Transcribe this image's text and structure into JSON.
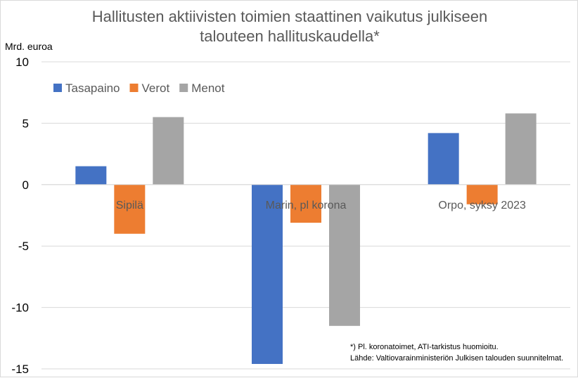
{
  "chart_data": {
    "type": "bar",
    "title_lines": [
      "Hallitusten aktiivisten toimien staattinen vaikutus julkiseen",
      "talouteen hallituskaudella*"
    ],
    "ylabel": "Mrd. euroa",
    "categories": [
      "Sipilä",
      "Marin, pl korona",
      "Orpo, syksy 2023"
    ],
    "series": [
      {
        "name": "Tasapaino",
        "color": "#4472C4",
        "values": [
          1.5,
          -14.6,
          4.2
        ]
      },
      {
        "name": "Verot",
        "color": "#ED7D31",
        "values": [
          -4.0,
          -3.1,
          -1.6
        ]
      },
      {
        "name": "Menot",
        "color": "#A5A5A5",
        "values": [
          5.5,
          -11.5,
          5.8
        ]
      }
    ],
    "ylim": [
      -15,
      10
    ],
    "yticks": [
      10,
      5,
      0,
      -5,
      -10,
      -15
    ],
    "grid": true,
    "legend_position": "top-left",
    "notes": [
      "*) Pl. koronatoimet, ATI-tarkistus huomioitu.",
      "Lähde: Valtiovarainministeriön Julkisen talouden suunnitelmat."
    ]
  }
}
